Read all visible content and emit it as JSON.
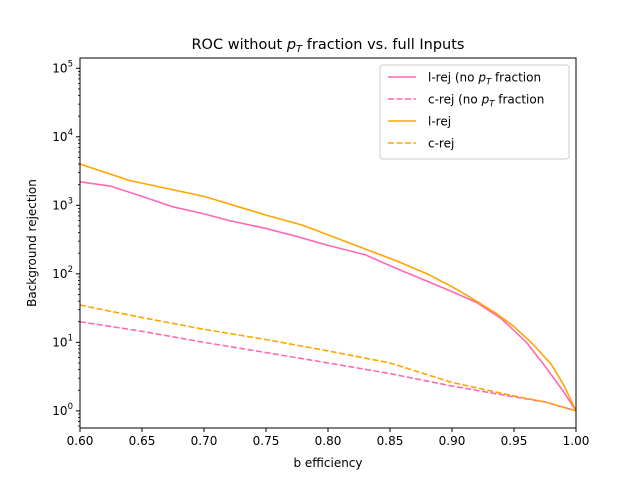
{
  "chart_data": {
    "type": "line",
    "title": {
      "prefix": "ROC without ",
      "sym": "p",
      "sub": "T",
      "suffix": " fraction vs. full Inputs"
    },
    "xlabel": "b efficiency",
    "ylabel": "Background rejection",
    "xlim": [
      0.6,
      1.0
    ],
    "ylim_log10": [
      -0.25,
      5.15
    ],
    "yscale": "log",
    "xticks": [
      "0.60",
      "0.65",
      "0.70",
      "0.75",
      "0.80",
      "0.85",
      "0.90",
      "0.95",
      "1.00"
    ],
    "yticks": [
      {
        "base": "10",
        "exp": "0"
      },
      {
        "base": "10",
        "exp": "1"
      },
      {
        "base": "10",
        "exp": "2"
      },
      {
        "base": "10",
        "exp": "3"
      },
      {
        "base": "10",
        "exp": "4"
      },
      {
        "base": "10",
        "exp": "5"
      }
    ],
    "legend_position": "top-right",
    "grid": false,
    "series": [
      {
        "name": {
          "prefix": "l-rej (no ",
          "sym": "p",
          "sub": "T",
          "suffix": " fraction"
        },
        "color": "#ff69b4",
        "dash": "solid",
        "x": [
          0.6,
          0.625,
          0.65,
          0.675,
          0.7,
          0.72,
          0.75,
          0.775,
          0.8,
          0.83,
          0.855,
          0.88,
          0.9,
          0.92,
          0.94,
          0.96,
          0.975,
          0.99,
          1.0
        ],
        "y": [
          2200,
          1900,
          1350,
          950,
          750,
          600,
          460,
          350,
          260,
          190,
          120,
          78,
          55,
          38,
          22,
          10,
          4.5,
          1.9,
          1.0
        ]
      },
      {
        "name": {
          "prefix": "c-rej (no ",
          "sym": "p",
          "sub": "T",
          "suffix": " fraction"
        },
        "color": "#ff69b4",
        "dash": "dashed",
        "x": [
          0.6,
          0.65,
          0.7,
          0.75,
          0.8,
          0.85,
          0.9,
          0.95,
          0.975,
          1.0
        ],
        "y": [
          20,
          14.5,
          10,
          7.1,
          5.0,
          3.5,
          2.3,
          1.6,
          1.35,
          1.0
        ]
      },
      {
        "name": {
          "prefix": "l-rej",
          "sym": "",
          "sub": "",
          "suffix": ""
        },
        "color": "#ffa500",
        "dash": "solid",
        "x": [
          0.6,
          0.64,
          0.7,
          0.75,
          0.78,
          0.8,
          0.83,
          0.855,
          0.88,
          0.9,
          0.915,
          0.935,
          0.95,
          0.965,
          0.98,
          0.99,
          1.0
        ],
        "y": [
          4000,
          2300,
          1350,
          720,
          510,
          370,
          230,
          155,
          100,
          65,
          45,
          27,
          17,
          9.5,
          4.8,
          2.4,
          1.0
        ]
      },
      {
        "name": {
          "prefix": "c-rej",
          "sym": "",
          "sub": "",
          "suffix": ""
        },
        "color": "#ffa500",
        "dash": "dashed",
        "x": [
          0.6,
          0.65,
          0.7,
          0.75,
          0.8,
          0.85,
          0.9,
          0.95,
          0.975,
          1.0
        ],
        "y": [
          35,
          23,
          15.5,
          11,
          7.5,
          5.0,
          2.6,
          1.65,
          1.35,
          1.0
        ]
      }
    ]
  }
}
